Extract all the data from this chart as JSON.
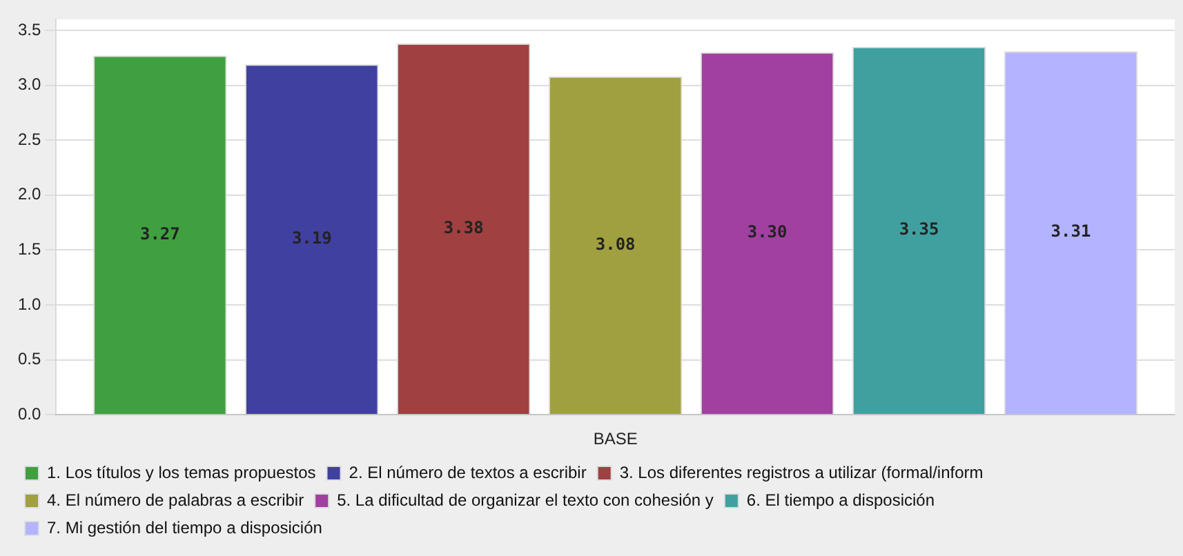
{
  "chart_data": {
    "type": "bar",
    "categories": [
      "BASE"
    ],
    "series": [
      {
        "name": "1. Los títulos y los temas propuestos",
        "color": "#40a040",
        "values": [
          3.27
        ],
        "value_labels": [
          "3.27"
        ]
      },
      {
        "name": "2. El número de textos a escribir",
        "color": "#4040a0",
        "values": [
          3.19
        ],
        "value_labels": [
          "3.19"
        ]
      },
      {
        "name": "3. Los diferentes registros a utilizar (formal/inform",
        "color": "#a04040",
        "values": [
          3.38
        ],
        "value_labels": [
          "3.38"
        ]
      },
      {
        "name": "4. El número de palabras a escribir",
        "color": "#a0a040",
        "values": [
          3.08
        ],
        "value_labels": [
          "3.08"
        ]
      },
      {
        "name": "5. La dificultad de organizar el texto con cohesión y",
        "color": "#a040a0",
        "values": [
          3.3
        ],
        "value_labels": [
          "3.30"
        ]
      },
      {
        "name": "6. El tiempo a disposición",
        "color": "#40a0a0",
        "values": [
          3.35
        ],
        "value_labels": [
          "3.35"
        ]
      },
      {
        "name": "7. Mi gestión del tiempo a disposición",
        "color": "#b3b3ff",
        "values": [
          3.31
        ],
        "value_labels": [
          "3.31"
        ]
      }
    ],
    "ylim": [
      0,
      3.6
    ],
    "yticks": [
      {
        "value": 0,
        "label": "0.0"
      },
      0.5,
      {
        "value": 1,
        "label": "1.0"
      },
      1.5,
      {
        "value": 2,
        "label": "2.0"
      },
      2.5,
      {
        "value": 3,
        "label": "3.0"
      },
      3.5
    ],
    "grid": "y",
    "legend": "bottom"
  }
}
